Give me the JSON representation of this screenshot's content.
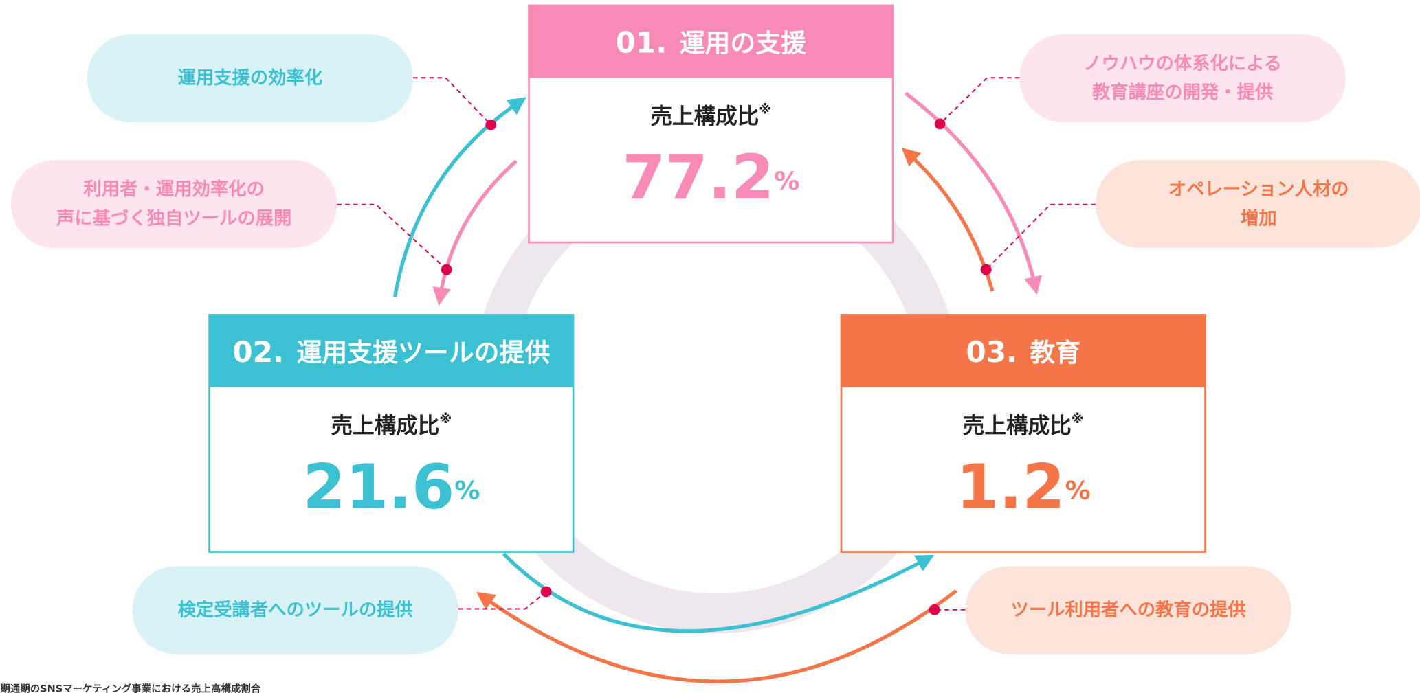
{
  "segments": [
    {
      "number": "01.",
      "title": "運用の支援",
      "ratio_label": "売上構成比",
      "note_mark": "※",
      "value": "77.2",
      "unit": "%"
    },
    {
      "number": "02.",
      "title": "運用支援ツールの提供",
      "ratio_label": "売上構成比",
      "note_mark": "※",
      "value": "21.6",
      "unit": "%"
    },
    {
      "number": "03.",
      "title": "教育",
      "ratio_label": "売上構成比",
      "note_mark": "※",
      "value": "1.2",
      "unit": "%"
    }
  ],
  "flows": [
    {
      "lines": [
        "運用支援の効率化"
      ]
    },
    {
      "lines": [
        "利用者・運用効率化の",
        "声に基づく独自ツールの展開"
      ]
    },
    {
      "lines": [
        "ノウハウの体系化による",
        "教育講座の開発・提供"
      ]
    },
    {
      "lines": [
        "オペレーション人材の",
        "増加"
      ]
    },
    {
      "lines": [
        "検定受講者へのツールの提供"
      ]
    },
    {
      "lines": [
        "ツール利用者への教育の提供"
      ]
    }
  ],
  "footnote": "期通期のSNSマーケティング事業における売上高構成割合"
}
